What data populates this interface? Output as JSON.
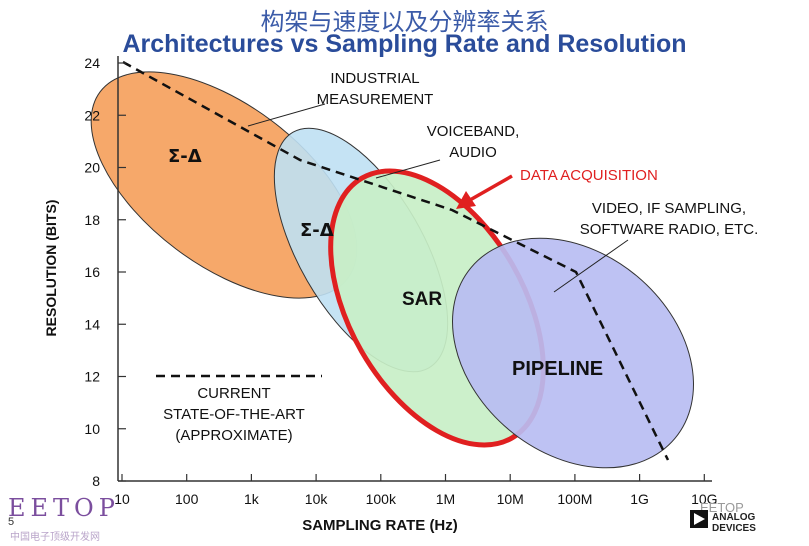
{
  "title_cn": "构架与速度以及分辨率关系",
  "title_en": "Architectures vs Sampling Rate and Resolution",
  "y_axis": {
    "label": "RESOLUTION (BITS)",
    "ticks": [
      8,
      10,
      12,
      14,
      16,
      18,
      20,
      22,
      24
    ]
  },
  "x_axis": {
    "label": "SAMPLING RATE (Hz)",
    "ticks": [
      "10",
      "100",
      "1k",
      "10k",
      "100k",
      "1M",
      "10M",
      "100M",
      "1G",
      "10G"
    ]
  },
  "regions": [
    {
      "id": "sigma-delta-1",
      "label": "Σ-Δ",
      "color": "#f6a86a"
    },
    {
      "id": "sigma-delta-2",
      "label": "Σ-Δ",
      "color": "#bfe0f3"
    },
    {
      "id": "sar",
      "label": "SAR",
      "color": "#c8efc7",
      "border": "#e02020"
    },
    {
      "id": "pipeline",
      "label": "PIPELINE",
      "color": "#b9bdf2"
    }
  ],
  "annotations": {
    "industrial": [
      "INDUSTRIAL",
      "MEASUREMENT"
    ],
    "voiceband": [
      "VOICEBAND,",
      "AUDIO"
    ],
    "data_acquisition": "DATA ACQUISITION",
    "video": [
      "VIDEO, IF SAMPLING,",
      "SOFTWARE RADIO, ETC."
    ]
  },
  "legend": [
    "CURRENT",
    "STATE-OF-THE-ART",
    "(APPROXIMATE)"
  ],
  "footer": {
    "slide_number": "5",
    "watermark_left": "EETOP",
    "watermark_left_cn": "中国电子顶级开发网",
    "watermark_right": "EETOP",
    "logo_line1": "ANALOG",
    "logo_line2": "DEVICES"
  }
}
